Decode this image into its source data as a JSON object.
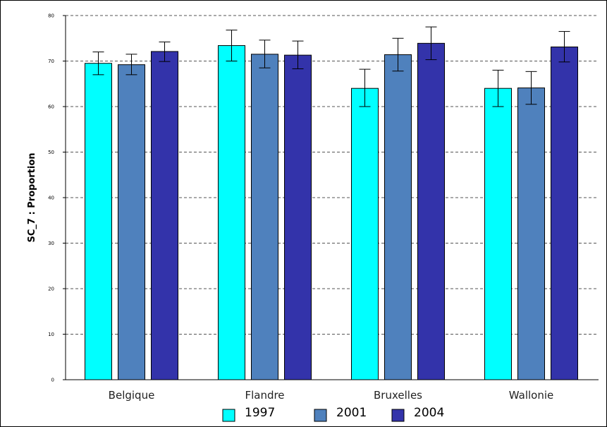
{
  "chart_data": {
    "type": "bar",
    "title": "",
    "xlabel": "",
    "ylabel": "SC_7 : Proportion",
    "ylim": [
      0,
      80
    ],
    "yticks": [
      0,
      10,
      20,
      30,
      40,
      50,
      60,
      70,
      80
    ],
    "grid": true,
    "legend_position": "bottom",
    "categories": [
      "Belgique",
      "Flandre",
      "Bruxelles",
      "Wallonie"
    ],
    "series": [
      {
        "name": "1997",
        "color": "#00ffff",
        "values": [
          69.5,
          73.4,
          64.0,
          64.0
        ],
        "error_low": [
          67.0,
          70.0,
          60.0,
          60.0
        ],
        "error_high": [
          72.0,
          76.8,
          68.2,
          68.0
        ]
      },
      {
        "name": "2001",
        "color": "#4f81bd",
        "values": [
          69.2,
          71.5,
          71.4,
          64.1
        ],
        "error_low": [
          67.0,
          68.5,
          67.8,
          60.5
        ],
        "error_high": [
          71.5,
          74.6,
          75.0,
          67.7
        ]
      },
      {
        "name": "2004",
        "color": "#3333aa",
        "values": [
          72.1,
          71.3,
          73.9,
          73.1
        ],
        "error_low": [
          69.9,
          68.3,
          70.3,
          69.8
        ],
        "error_high": [
          74.2,
          74.4,
          77.5,
          76.5
        ]
      }
    ]
  }
}
